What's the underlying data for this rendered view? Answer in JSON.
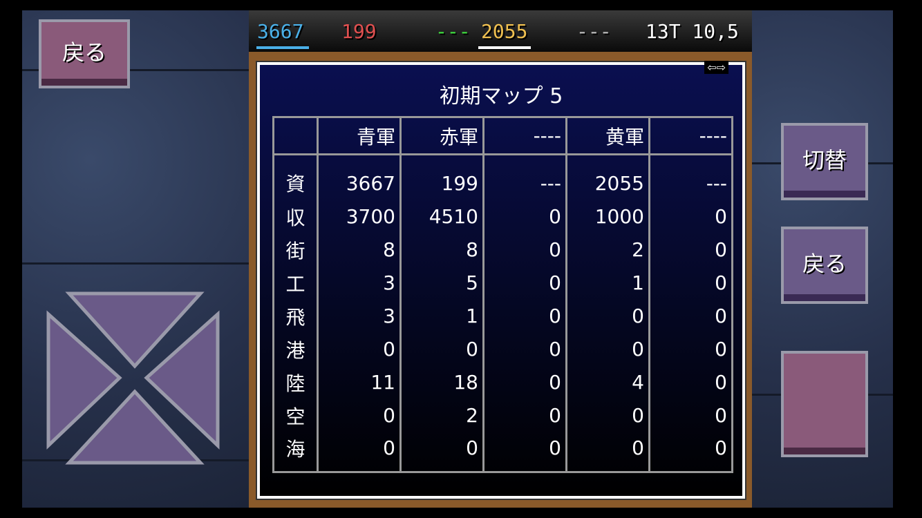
{
  "topbar": {
    "blue": "3667",
    "red": "199",
    "green": "---",
    "yellow": "2055",
    "gray": "---",
    "turn_pos": "13T 10,5",
    "colors": {
      "blue": "#4ab0e8",
      "red": "#e05050",
      "green": "#40e040",
      "yellow": "#f0c050",
      "gray": "#c0c0c0"
    }
  },
  "left": {
    "back": "戻る",
    "dpad": "dpad-icon"
  },
  "right": {
    "switch": "切替",
    "back": "戻る"
  },
  "panel": {
    "title": "初期マップ 5",
    "arrows": "⇦⇨",
    "headers": [
      "",
      "青軍",
      "赤軍",
      "----",
      "黄軍",
      "----"
    ],
    "rows": [
      [
        "資",
        "3667",
        "199",
        "---",
        "2055",
        "---"
      ],
      [
        "収",
        "3700",
        "4510",
        "0",
        "1000",
        "0"
      ],
      [
        "街",
        "8",
        "8",
        "0",
        "2",
        "0"
      ],
      [
        "工",
        "3",
        "5",
        "0",
        "1",
        "0"
      ],
      [
        "飛",
        "3",
        "1",
        "0",
        "0",
        "0"
      ],
      [
        "港",
        "0",
        "0",
        "0",
        "0",
        "0"
      ],
      [
        "陸",
        "11",
        "18",
        "0",
        "4",
        "0"
      ],
      [
        "空",
        "0",
        "2",
        "0",
        "0",
        "0"
      ],
      [
        "海",
        "0",
        "0",
        "0",
        "0",
        "0"
      ]
    ]
  }
}
